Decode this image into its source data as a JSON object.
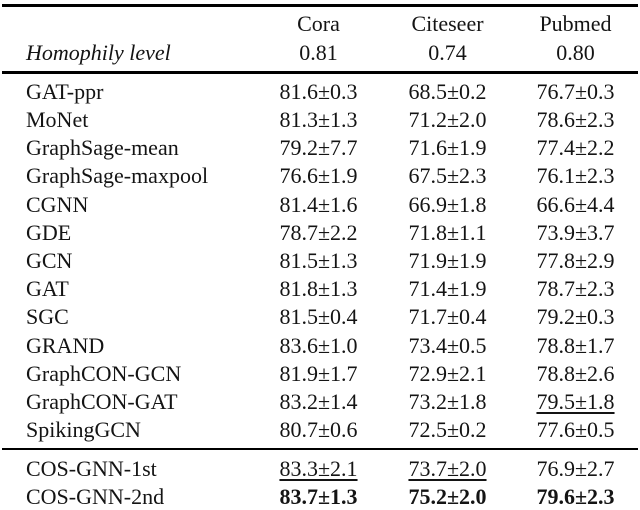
{
  "header": {
    "label": "Homophily level",
    "cols": [
      "Cora",
      "Citeseer",
      "Pubmed"
    ],
    "homophily": [
      "0.81",
      "0.74",
      "0.80"
    ]
  },
  "rows": [
    {
      "name": "GAT-ppr",
      "cora": "81.6±0.3",
      "citeseer": "68.5±0.2",
      "pubmed": "76.7±0.3"
    },
    {
      "name": "MoNet",
      "cora": "81.3±1.3",
      "citeseer": "71.2±2.0",
      "pubmed": "78.6±2.3"
    },
    {
      "name": "GraphSage-mean",
      "cora": "79.2±7.7",
      "citeseer": "71.6±1.9",
      "pubmed": "77.4±2.2"
    },
    {
      "name": "GraphSage-maxpool",
      "cora": "76.6±1.9",
      "citeseer": "67.5±2.3",
      "pubmed": "76.1±2.3"
    },
    {
      "name": "CGNN",
      "cora": "81.4±1.6",
      "citeseer": "66.9±1.8",
      "pubmed": "66.6±4.4"
    },
    {
      "name": "GDE",
      "cora": "78.7±2.2",
      "citeseer": "71.8±1.1",
      "pubmed": "73.9±3.7"
    },
    {
      "name": "GCN",
      "cora": "81.5±1.3",
      "citeseer": "71.9±1.9",
      "pubmed": "77.8±2.9"
    },
    {
      "name": "GAT",
      "cora": "81.8±1.3",
      "citeseer": "71.4±1.9",
      "pubmed": "78.7±2.3"
    },
    {
      "name": "SGC",
      "cora": "81.5±0.4",
      "citeseer": "71.7±0.4",
      "pubmed": "79.2±0.3"
    },
    {
      "name": "GRAND",
      "cora": "83.6±1.0",
      "citeseer": "73.4±0.5",
      "pubmed": "78.8±1.7"
    },
    {
      "name": "GraphCON-GCN",
      "cora": "81.9±1.7",
      "citeseer": "72.9±2.1",
      "pubmed": "78.8±2.6"
    },
    {
      "name": "GraphCON-GAT",
      "cora": "83.2±1.4",
      "citeseer": "73.2±1.8",
      "pubmed": "79.5±1.8"
    },
    {
      "name": "SpikingGCN",
      "cora": "80.7±0.6",
      "citeseer": "72.5±0.2",
      "pubmed": "77.6±0.5"
    }
  ],
  "footer": [
    {
      "name": "COS-GNN-1st",
      "cora": "83.3±2.1",
      "citeseer": "73.7±2.0",
      "pubmed": "76.9±2.7"
    },
    {
      "name": "COS-GNN-2nd",
      "cora": "83.7±1.3",
      "citeseer": "75.2±2.0",
      "pubmed": "79.6±2.3"
    }
  ],
  "text_color": "#141414",
  "rule_color": "#000000"
}
